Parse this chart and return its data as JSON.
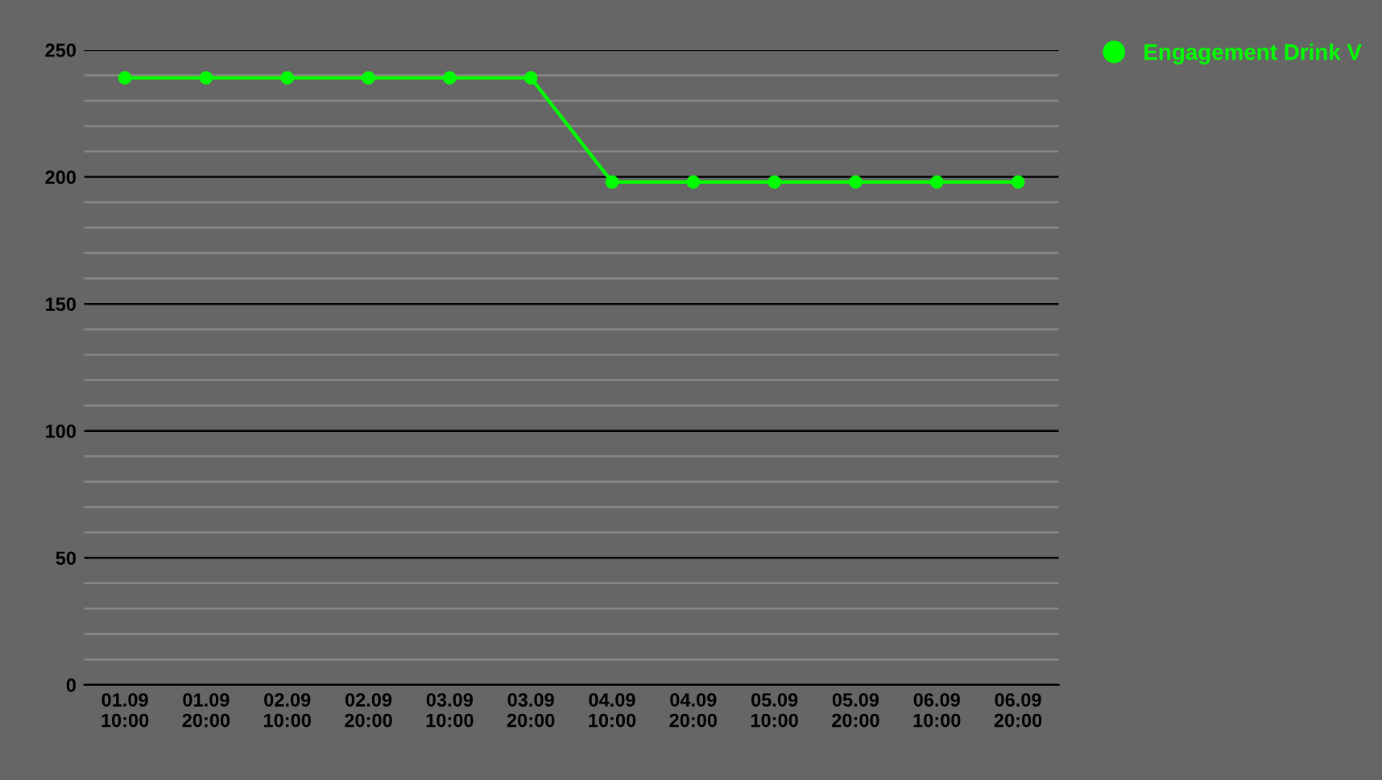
{
  "chart_data": {
    "type": "line",
    "categories": [
      "01.09\n10:00",
      "01.09\n20:00",
      "02.09\n10:00",
      "02.09\n20:00",
      "03.09\n10:00",
      "03.09\n20:00",
      "04.09\n10:00",
      "04.09\n20:00",
      "05.09\n10:00",
      "05.09\n20:00",
      "06.09\n10:00",
      "06.09\n20:00"
    ],
    "series": [
      {
        "name": "Engagement Drink V",
        "color": "#00ff00",
        "values": [
          239,
          239,
          239,
          239,
          239,
          239,
          198,
          198,
          198,
          198,
          198,
          198
        ]
      }
    ],
    "ylim": [
      0,
      250
    ],
    "yticks": [
      0,
      {
        "value": 10,
        "label": null
      },
      {
        "value": 20,
        "label": null
      },
      {
        "value": 30,
        "label": null
      },
      {
        "value": 40,
        "label": null
      },
      50,
      {
        "value": 60,
        "label": null
      },
      {
        "value": 70,
        "label": null
      },
      {
        "value": 80,
        "label": null
      },
      {
        "value": 90,
        "label": null
      },
      100,
      {
        "value": 110,
        "label": null
      },
      {
        "value": 120,
        "label": null
      },
      {
        "value": 130,
        "label": null
      },
      {
        "value": 140,
        "label": null
      },
      150,
      {
        "value": 160,
        "label": null
      },
      {
        "value": 170,
        "label": null
      },
      {
        "value": 180,
        "label": null
      },
      {
        "value": 190,
        "label": null
      },
      200,
      {
        "value": 210,
        "label": null
      },
      {
        "value": 220,
        "label": null
      },
      {
        "value": 230,
        "label": null
      },
      {
        "value": 240,
        "label": null
      },
      250
    ],
    "grid": true,
    "legend": "top right",
    "marker": "circle",
    "line_style": "solid"
  }
}
